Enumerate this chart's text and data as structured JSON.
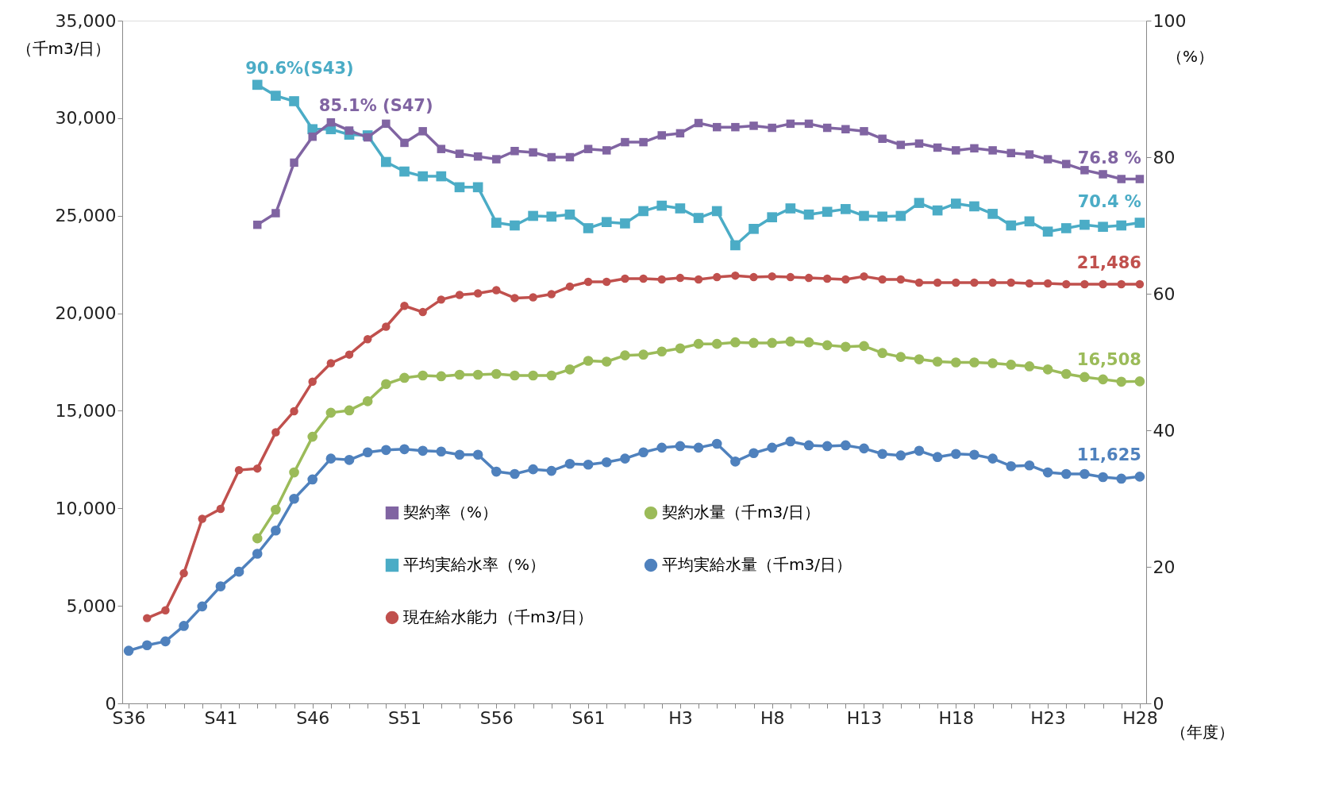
{
  "chart_data": {
    "type": "line",
    "xlabel": "（年度）",
    "ylabel": "（千m3/日）",
    "y2label": "（%）",
    "categories": [
      "S36",
      null,
      null,
      null,
      null,
      "S41",
      null,
      null,
      null,
      null,
      "S46",
      null,
      null,
      null,
      null,
      "S51",
      null,
      null,
      null,
      null,
      "S56",
      null,
      null,
      null,
      null,
      "S61",
      null,
      null,
      null,
      null,
      "H3",
      null,
      null,
      null,
      null,
      "H8",
      null,
      null,
      null,
      null,
      "H13",
      null,
      null,
      null,
      null,
      "H18",
      null,
      null,
      null,
      null,
      "H23",
      null,
      null,
      null,
      null,
      "H28"
    ],
    "ylim": [
      0,
      35000
    ],
    "yticks": [
      0,
      {
        "value": 5000,
        "label": "5,000"
      },
      {
        "value": 10000,
        "label": "10,000"
      },
      {
        "value": 15000,
        "label": "15,000"
      },
      {
        "value": 20000,
        "label": "20,000"
      },
      {
        "value": 25000,
        "label": "25,000"
      },
      {
        "value": 30000,
        "label": "30,000"
      },
      {
        "value": 35000,
        "label": "35,000"
      }
    ],
    "y2lim": [
      0,
      100
    ],
    "y2ticks": [
      0,
      20,
      40,
      60,
      80,
      100
    ],
    "grid": false,
    "legend": "bottom",
    "series": [
      {
        "name": "契約率（%）",
        "color": "#8064a2",
        "axis": "y2",
        "marker": "square",
        "values": [
          null,
          null,
          null,
          null,
          null,
          null,
          null,
          70.1,
          71.8,
          79.2,
          83.0,
          85.1,
          83.9,
          82.9,
          84.9,
          82.1,
          83.8,
          81.2,
          80.5,
          80.1,
          79.7,
          80.9,
          80.7,
          80.0,
          80.0,
          81.2,
          81.0,
          82.2,
          82.2,
          83.2,
          83.5,
          85.0,
          84.4,
          84.4,
          84.6,
          84.3,
          84.9,
          84.9,
          84.3,
          84.1,
          83.8,
          82.7,
          81.8,
          82.0,
          81.4,
          81.0,
          81.3,
          81.0,
          80.6,
          80.4,
          79.7,
          79.0,
          78.1,
          77.5,
          76.8,
          76.8
        ],
        "value_labels": [
          null,
          null,
          null,
          null,
          null,
          null,
          null,
          null,
          null,
          null,
          null,
          "85.1% (S47)",
          null,
          null,
          null,
          null,
          null,
          null,
          null,
          null,
          null,
          null,
          null,
          null,
          null,
          null,
          null,
          null,
          null,
          null,
          null,
          null,
          null,
          null,
          null,
          null,
          null,
          null,
          null,
          null,
          null,
          null,
          null,
          null,
          null,
          null,
          null,
          null,
          null,
          null,
          null,
          null,
          null,
          null,
          null,
          "76.8 %"
        ]
      },
      {
        "name": "平均実給水率（%）",
        "color": "#4bacc6",
        "axis": "y2",
        "marker": "square",
        "values": [
          null,
          null,
          null,
          null,
          null,
          null,
          null,
          90.6,
          89.0,
          88.2,
          84.1,
          84.1,
          83.3,
          83.2,
          79.3,
          77.9,
          77.2,
          77.2,
          75.6,
          75.6,
          70.4,
          70.0,
          71.4,
          71.3,
          71.6,
          69.6,
          70.5,
          70.3,
          72.1,
          72.9,
          72.5,
          71.1,
          72.1,
          67.1,
          69.5,
          71.2,
          72.5,
          71.6,
          72.0,
          72.4,
          71.4,
          71.3,
          71.4,
          73.3,
          72.2,
          73.2,
          72.8,
          71.7,
          70.0,
          70.6,
          69.1,
          69.6,
          70.1,
          69.8,
          70.0,
          70.4
        ],
        "value_labels": [
          null,
          null,
          null,
          null,
          null,
          null,
          null,
          "90.6%(S43)",
          null,
          null,
          null,
          null,
          null,
          null,
          null,
          null,
          null,
          null,
          null,
          null,
          null,
          null,
          null,
          null,
          null,
          null,
          null,
          null,
          null,
          null,
          null,
          null,
          null,
          null,
          null,
          null,
          null,
          null,
          null,
          null,
          null,
          null,
          null,
          null,
          null,
          null,
          null,
          null,
          null,
          null,
          null,
          null,
          null,
          null,
          null,
          "70.4 %"
        ]
      },
      {
        "name": "現在給水能力（千m3/日）",
        "color": "#c0504d",
        "marker": "circle",
        "values": [
          null,
          4370,
          4770,
          6670,
          9460,
          9970,
          11960,
          12040,
          13900,
          14980,
          16490,
          17440,
          17880,
          18670,
          19310,
          20380,
          20060,
          20700,
          20940,
          21020,
          21180,
          20780,
          20820,
          20980,
          21370,
          21610,
          21610,
          21770,
          21770,
          21730,
          21810,
          21730,
          21850,
          21930,
          21850,
          21890,
          21850,
          21810,
          21770,
          21730,
          21890,
          21730,
          21730,
          21570,
          21570,
          21570,
          21570,
          21570,
          21570,
          21530,
          21530,
          21490,
          21490,
          21490,
          21490,
          21486
        ],
        "value_labels": [
          null,
          null,
          null,
          null,
          null,
          null,
          null,
          null,
          null,
          null,
          null,
          null,
          null,
          null,
          null,
          null,
          null,
          null,
          null,
          null,
          null,
          null,
          null,
          null,
          null,
          null,
          null,
          null,
          null,
          null,
          null,
          null,
          null,
          null,
          null,
          null,
          null,
          null,
          null,
          null,
          null,
          null,
          null,
          null,
          null,
          null,
          null,
          null,
          null,
          null,
          null,
          null,
          null,
          null,
          null,
          "21,486"
        ]
      },
      {
        "name": "契約水量（千m3/日）",
        "color": "#9bbb59",
        "marker": "circle",
        "values": [
          null,
          null,
          null,
          null,
          null,
          null,
          null,
          8460,
          9930,
          11840,
          13670,
          14900,
          15020,
          15490,
          16370,
          16690,
          16810,
          16770,
          16850,
          16850,
          16890,
          16810,
          16810,
          16810,
          17120,
          17560,
          17520,
          17840,
          17880,
          18040,
          18200,
          18430,
          18430,
          18510,
          18480,
          18480,
          18550,
          18510,
          18360,
          18280,
          18320,
          17960,
          17760,
          17640,
          17520,
          17480,
          17480,
          17440,
          17360,
          17280,
          17120,
          16890,
          16730,
          16610,
          16490,
          16508
        ],
        "value_labels": [
          null,
          null,
          null,
          null,
          null,
          null,
          null,
          null,
          null,
          null,
          null,
          null,
          null,
          null,
          null,
          null,
          null,
          null,
          null,
          null,
          null,
          null,
          null,
          null,
          null,
          null,
          null,
          null,
          null,
          null,
          null,
          null,
          null,
          null,
          null,
          null,
          null,
          null,
          null,
          null,
          null,
          null,
          null,
          null,
          null,
          null,
          null,
          null,
          null,
          null,
          null,
          null,
          null,
          null,
          null,
          "16,508"
        ]
      },
      {
        "name": "平均実給水量（千m3/日）",
        "color": "#4f81bd",
        "marker": "circle",
        "values": [
          2700,
          2980,
          3180,
          3970,
          4970,
          6000,
          6750,
          7670,
          8860,
          10490,
          11480,
          12550,
          12480,
          12870,
          12990,
          13030,
          12950,
          12910,
          12750,
          12750,
          11880,
          11760,
          12000,
          11920,
          12280,
          12240,
          12360,
          12550,
          12870,
          13110,
          13190,
          13110,
          13310,
          12400,
          12830,
          13110,
          13430,
          13230,
          13190,
          13230,
          13070,
          12790,
          12710,
          12950,
          12630,
          12790,
          12750,
          12550,
          12160,
          12200,
          11840,
          11760,
          11760,
          11600,
          11520,
          11625
        ],
        "value_labels": [
          null,
          null,
          null,
          null,
          null,
          null,
          null,
          null,
          null,
          null,
          null,
          null,
          null,
          null,
          null,
          null,
          null,
          null,
          null,
          null,
          null,
          null,
          null,
          null,
          null,
          null,
          null,
          null,
          null,
          null,
          null,
          null,
          null,
          null,
          null,
          null,
          null,
          null,
          null,
          null,
          null,
          null,
          null,
          null,
          null,
          null,
          null,
          null,
          null,
          null,
          null,
          null,
          null,
          null,
          null,
          "11,625"
        ]
      }
    ]
  }
}
